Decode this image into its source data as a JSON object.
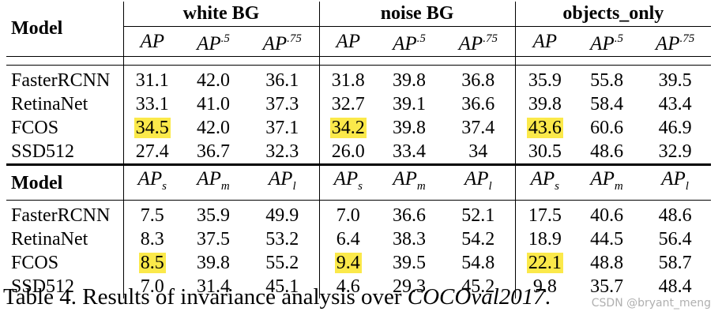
{
  "table": {
    "model_header": "Model",
    "groups": [
      "white BG",
      "noise BG",
      "objects_only"
    ],
    "metrics_top": [
      "AP",
      "AP.5",
      "AP.75"
    ],
    "metrics_bottom": [
      "APs",
      "APm",
      "APl"
    ],
    "models": [
      "FasterRCNN",
      "RetinaNet",
      "FCOS",
      "SSD512"
    ],
    "top_rows": [
      [
        "31.1",
        "42.0",
        "36.1",
        "31.8",
        "39.8",
        "36.8",
        "35.9",
        "55.8",
        "39.5"
      ],
      [
        "33.1",
        "41.0",
        "37.3",
        "32.7",
        "39.1",
        "36.6",
        "39.8",
        "58.4",
        "43.4"
      ],
      [
        "34.5",
        "42.0",
        "37.1",
        "34.2",
        "39.8",
        "37.4",
        "43.6",
        "60.6",
        "46.9"
      ],
      [
        "27.4",
        "36.7",
        "32.3",
        "26.0",
        "33.4",
        "34",
        "30.5",
        "48.6",
        "32.9"
      ]
    ],
    "bottom_rows": [
      [
        "7.5",
        "35.9",
        "49.9",
        "7.0",
        "36.6",
        "52.1",
        "17.5",
        "40.6",
        "48.6"
      ],
      [
        "8.3",
        "37.5",
        "53.2",
        "6.4",
        "38.3",
        "54.2",
        "18.9",
        "44.5",
        "56.4"
      ],
      [
        "8.5",
        "39.8",
        "55.2",
        "9.4",
        "39.5",
        "54.8",
        "22.1",
        "48.8",
        "58.7"
      ],
      [
        "7.0",
        "31.4",
        "45.1",
        "4.6",
        "29.3",
        "45.2",
        "9.8",
        "35.7",
        "48.4"
      ]
    ],
    "highlight_color": "#fbe94a"
  },
  "caption": {
    "prefix": "Table 4. Results of invariance analysis over ",
    "dataset": "COCOval2017",
    "suffix": "."
  },
  "watermark": "CSDN @bryant_meng"
}
